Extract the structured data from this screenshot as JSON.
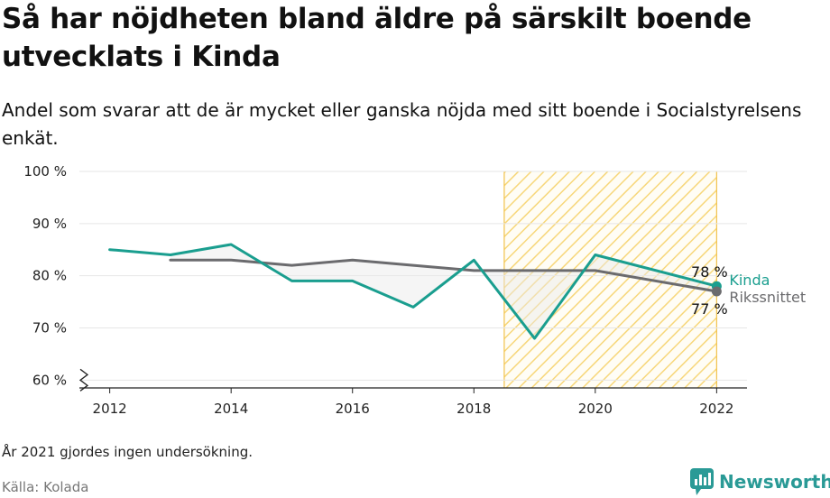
{
  "title": "Så har nöjdheten bland äldre på särskilt boende utvecklats i Kinda",
  "subtitle": "Andel som svarar att de är mycket eller ganska nöjda med sitt boende i Socialstyrelsens enkät.",
  "note": "År 2021 gjordes ingen undersökning.",
  "source": "Källa: Kolada",
  "brand": "Newsworthy",
  "colors": {
    "kinda": "#1a9e8f",
    "riket": "#6b6b6e",
    "highlight_stripe": "#f7d77a",
    "highlight_border": "#f2c24b",
    "grid": "#e6e6e6",
    "fill": "#e9e9e9",
    "brand": "#2a9a96"
  },
  "chart_data": {
    "type": "line",
    "x_ticks": [
      2012,
      2014,
      2016,
      2018,
      2020,
      2022
    ],
    "x_tick_labels": [
      "2012",
      "2014",
      "2016",
      "2018",
      "2020",
      "2022"
    ],
    "y_ticks": [
      60,
      70,
      80,
      90,
      100
    ],
    "y_tick_labels": [
      "60 %",
      "70 %",
      "80 %",
      "90 %",
      "100 %"
    ],
    "xlim": [
      2011.5,
      2022.5
    ],
    "ylim": [
      58.5,
      100
    ],
    "y_axis_break": true,
    "grid": "horizontal",
    "highlight_range": [
      2018.5,
      2022
    ],
    "series": [
      {
        "name": "Kinda",
        "color_key": "kinda",
        "x": [
          2012,
          2013,
          2014,
          2015,
          2016,
          2017,
          2018,
          2019,
          2020,
          2022
        ],
        "y": [
          85,
          84,
          86,
          79,
          79,
          74,
          83,
          68,
          84,
          78
        ],
        "end_label": "78 %",
        "end_label_position": "above"
      },
      {
        "name": "Rikssnittet",
        "color_key": "riket",
        "x": [
          2013,
          2014,
          2015,
          2016,
          2017,
          2018,
          2019,
          2020,
          2022
        ],
        "y": [
          83,
          83,
          82,
          83,
          82,
          81,
          81,
          81,
          77
        ],
        "end_label": "77 %",
        "end_label_position": "below"
      }
    ]
  }
}
